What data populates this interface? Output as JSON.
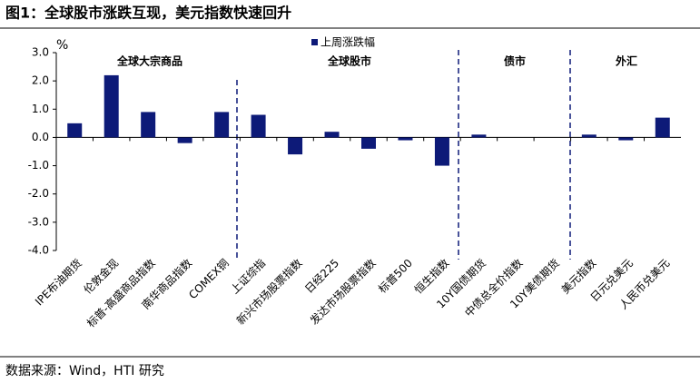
{
  "chart_data": {
    "type": "bar",
    "title": "图1：全球股市涨跌互现，美元指数快速回升",
    "y_unit": "%",
    "source": "数据来源：Wind，HTI 研究",
    "section_labels": [
      "全球大宗商品",
      "全球股市",
      "债市",
      "外汇"
    ],
    "categories": [
      "IPE布油期货",
      "伦敦金现",
      "标普-高盛商品指数",
      "南华商品指数",
      "COMEX铜",
      "上证综指",
      "新兴市场股票指数",
      "日经225",
      "发达市场股票指数",
      "标普500",
      "恒生指数",
      "10Y国债期货",
      "中债总全价指数",
      "10Y美债期货",
      "美元指数",
      "日元兑美元",
      "人民币兑美元"
    ],
    "series": [
      {
        "name": "上周涨跌幅",
        "color": "#0d1a78",
        "values": [
          0.5,
          2.2,
          0.9,
          -0.2,
          0.9,
          0.8,
          -0.6,
          0.2,
          -0.4,
          -0.1,
          -1.0,
          0.1,
          0.0,
          0.0,
          0.1,
          -0.1,
          0.7
        ]
      }
    ],
    "ylim": [
      -4,
      3
    ],
    "yticks": [
      {
        "value": -4,
        "label": "-4.0"
      },
      {
        "value": -3,
        "label": "-3.0"
      },
      {
        "value": -2,
        "label": "-2.0"
      },
      {
        "value": -1,
        "label": "-1.0"
      },
      {
        "value": 0,
        "label": "0.0"
      },
      {
        "value": 1,
        "label": "1.0"
      },
      {
        "value": 2,
        "label": "2.0"
      },
      {
        "value": 3,
        "label": "3.0"
      }
    ]
  }
}
